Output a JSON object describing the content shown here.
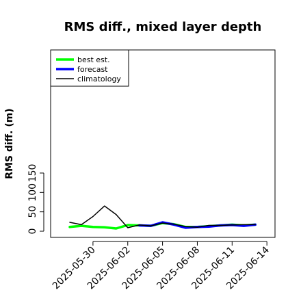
{
  "chart_data": {
    "type": "line",
    "title": "RMS diff., mixed layer depth",
    "xlabel": "",
    "ylabel": "RMS diff. (m)",
    "ylim": [
      0,
      150
    ],
    "yticks": [
      0,
      50,
      100,
      150
    ],
    "x_dates": [
      "2025-05-28",
      "2025-05-29",
      "2025-05-30",
      "2025-05-31",
      "2025-06-01",
      "2025-06-02",
      "2025-06-03",
      "2025-06-04",
      "2025-06-05",
      "2025-06-06",
      "2025-06-07",
      "2025-06-08",
      "2025-06-09",
      "2025-06-10",
      "2025-06-11",
      "2025-06-12",
      "2025-06-13",
      "2025-06-14"
    ],
    "xticks": [
      {
        "label": "2025-05-30",
        "date": "2025-05-30",
        "color": "#000000"
      },
      {
        "label": "2025-06-02",
        "date": "2025-06-02",
        "color": "#000000"
      },
      {
        "label": "2025-06-05",
        "date": "2025-06-05",
        "color": "#228b22"
      },
      {
        "label": "2025-06-08",
        "date": "2025-06-08",
        "color": "#000000"
      },
      {
        "label": "2025-06-11",
        "date": "2025-06-11",
        "color": "#000000"
      },
      {
        "label": "2025-06-14",
        "date": "2025-06-14",
        "color": "#000000"
      }
    ],
    "series": [
      {
        "name": "best est.",
        "color": "#00ff00",
        "width": 3.5,
        "values": [
          11,
          14,
          11,
          10,
          7,
          16,
          15,
          14,
          21,
          18,
          11,
          11,
          13,
          15,
          17,
          15,
          17,
          null
        ]
      },
      {
        "name": "forecast",
        "color": "#0000ff",
        "width": 3.5,
        "values": [
          null,
          null,
          null,
          null,
          null,
          null,
          15,
          14,
          23,
          17,
          9,
          11,
          12,
          15,
          16,
          14,
          17,
          null
        ]
      },
      {
        "name": "climatology",
        "color": "#000000",
        "width": 1.5,
        "values": [
          23,
          17,
          38,
          65,
          43,
          9,
          16,
          14,
          21,
          18,
          12,
          10,
          15,
          15,
          16,
          17,
          17,
          null
        ]
      }
    ],
    "legend_position": "top-left",
    "grid": false
  }
}
